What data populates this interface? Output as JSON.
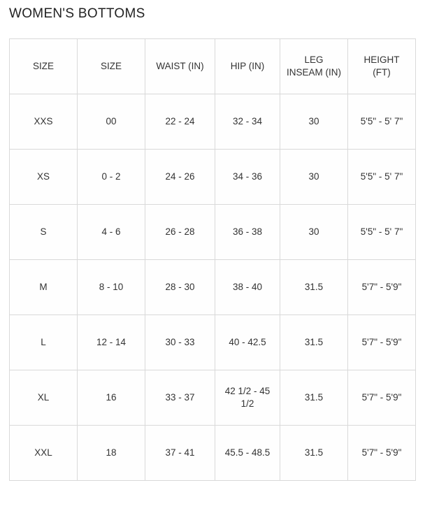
{
  "title": "WOMEN'S BOTTOMS",
  "table": {
    "headers": [
      "SIZE",
      "SIZE",
      "WAIST (IN)",
      "HIP (IN)",
      "LEG\nINSEAM (IN)",
      "HEIGHT\n(FT)"
    ],
    "column_keys": [
      "size-alpha",
      "size-numeric",
      "waist-in",
      "hip-in",
      "leg-inseam-in",
      "height-ft"
    ],
    "rows": [
      [
        "XXS",
        "00",
        "22 - 24",
        "32 - 34",
        "30",
        "5'5\" - 5' 7\""
      ],
      [
        "XS",
        "0 - 2",
        "24 - 26",
        "34 - 36",
        "30",
        "5'5\" - 5' 7\""
      ],
      [
        "S",
        "4 - 6",
        "26 - 28",
        "36 - 38",
        "30",
        "5'5\" - 5' 7\""
      ],
      [
        "M",
        "8 - 10",
        "28 - 30",
        "38 - 40",
        "31.5",
        "5'7\" - 5'9\""
      ],
      [
        "L",
        "12 - 14",
        "30 - 33",
        "40 - 42.5",
        "31.5",
        "5'7\" - 5'9\""
      ],
      [
        "XL",
        "16",
        "33 - 37",
        "42 1/2 - 45 1/2",
        "31.5",
        "5'7\" - 5'9\""
      ],
      [
        "XXL",
        "18",
        "37 - 41",
        "45.5 - 48.5",
        "31.5",
        "5'7\" - 5'9\""
      ]
    ]
  },
  "colors": {
    "border": "#d9d9d9",
    "text": "#333333",
    "title_text": "#222222",
    "background": "#ffffff"
  }
}
